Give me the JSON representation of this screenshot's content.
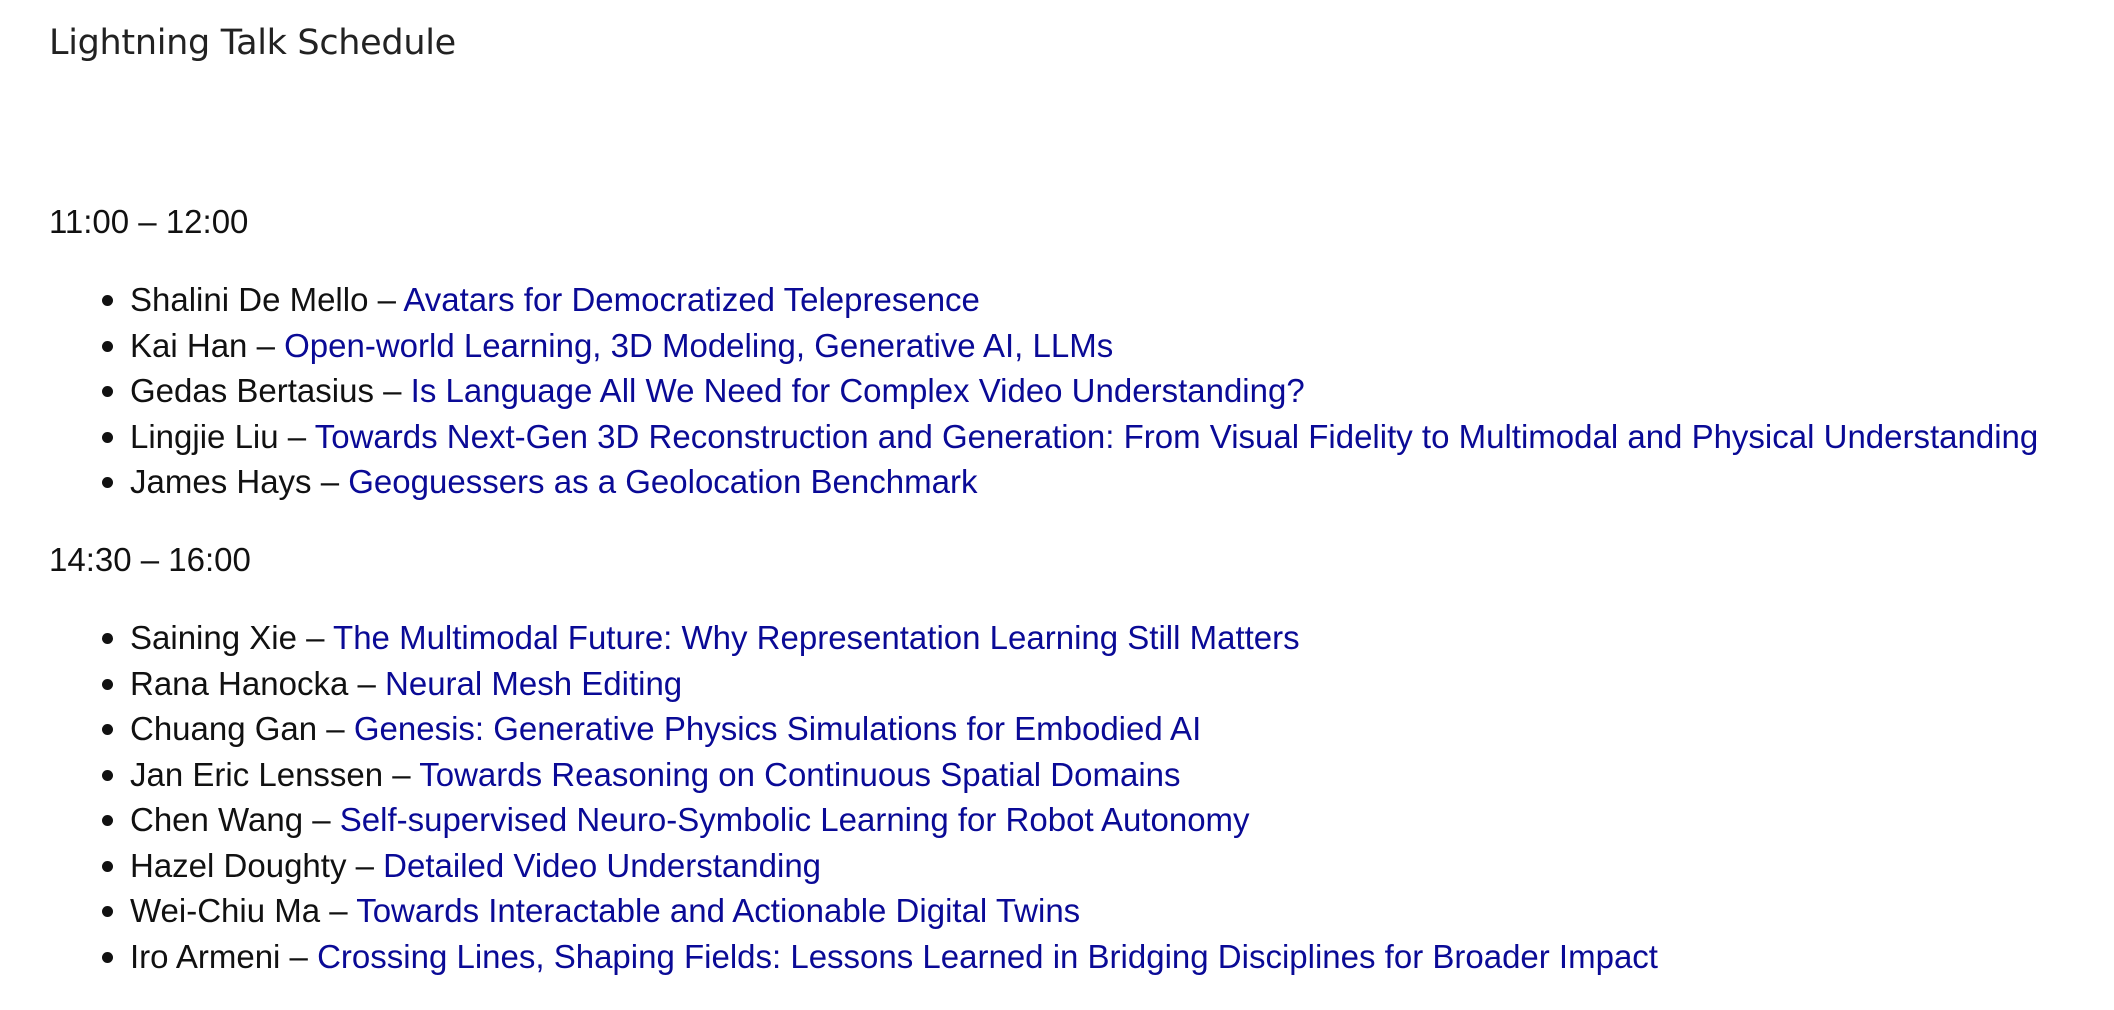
{
  "page": {
    "title": "Lightning Talk Schedule"
  },
  "sessions": [
    {
      "time": "11:00 – 12:00",
      "talks": [
        {
          "speaker": "Shalini De Mello",
          "sep": " – ",
          "title": "Avatars for Democratized Telepresence"
        },
        {
          "speaker": "Kai Han",
          "sep": " – ",
          "title": "Open-world Learning, 3D Modeling, Generative AI, LLMs"
        },
        {
          "speaker": "Gedas Bertasius",
          "sep": " – ",
          "title": "Is Language All We Need for Complex Video Understanding?"
        },
        {
          "speaker": "Lingjie Liu",
          "sep": " – ",
          "title": "Towards Next-Gen 3D Reconstruction and Generation: From Visual Fidelity to Multimodal and Physical Understanding"
        },
        {
          "speaker": "James Hays",
          "sep": " – ",
          "title": "Geoguessers as a Geolocation Benchmark"
        }
      ]
    },
    {
      "time": "14:30 – 16:00",
      "talks": [
        {
          "speaker": "Saining Xie",
          "sep": " – ",
          "title": "The Multimodal Future: Why Representation Learning Still Matters"
        },
        {
          "speaker": "Rana Hanocka",
          "sep": " – ",
          "title": "Neural Mesh Editing"
        },
        {
          "speaker": "Chuang Gan",
          "sep": " – ",
          "title": "Genesis: Generative Physics Simulations for Embodied AI"
        },
        {
          "speaker": "Jan Eric Lenssen",
          "sep": " – ",
          "title": "Towards Reasoning on Continuous Spatial Domains"
        },
        {
          "speaker": "Chen Wang",
          "sep": " – ",
          "title": "Self-supervised Neuro-Symbolic Learning for Robot Autonomy"
        },
        {
          "speaker": "Hazel Doughty",
          "sep": " – ",
          "title": "Detailed Video Understanding"
        },
        {
          "speaker": "Wei-Chiu Ma",
          "sep": " – ",
          "title": "Towards Interactable and Actionable Digital Twins"
        },
        {
          "speaker": "Iro Armeni",
          "sep": " – ",
          "title": "Crossing Lines, Shaping Fields: Lessons Learned in Bridging Disciplines for Broader Impact"
        }
      ]
    }
  ],
  "colors": {
    "text": "#111111",
    "link": "#0a0a96",
    "background": "#ffffff"
  },
  "icons": {
    "bullet": "bullet-icon"
  }
}
